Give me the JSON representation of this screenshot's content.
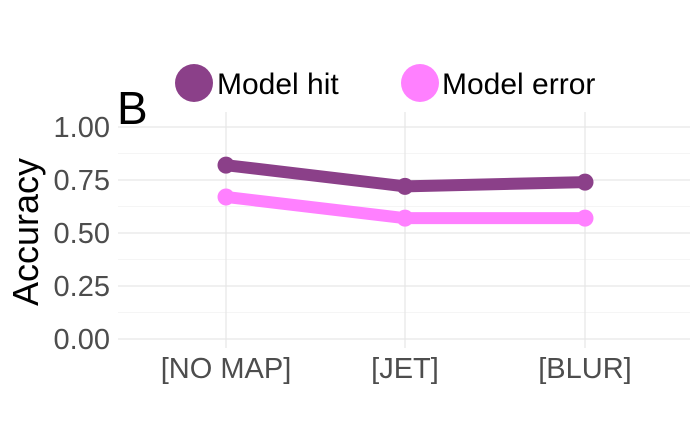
{
  "chart_data": {
    "type": "line",
    "panel_label": "B",
    "categories": [
      "[NO MAP]",
      "[JET]",
      "[BLUR]"
    ],
    "series": [
      {
        "name": "Model hit",
        "values": [
          0.82,
          0.72,
          0.74
        ],
        "color": "#8b4089"
      },
      {
        "name": "Model error",
        "values": [
          0.67,
          0.57,
          0.57
        ],
        "color": "#ff80ff"
      }
    ],
    "ylabel": "Accuracy",
    "xlabel": "",
    "ylim": [
      0,
      1
    ],
    "yticks": [
      "0.00",
      "0.25",
      "0.50",
      "0.75",
      "1.00"
    ],
    "grid": true,
    "legend_position": "top"
  }
}
